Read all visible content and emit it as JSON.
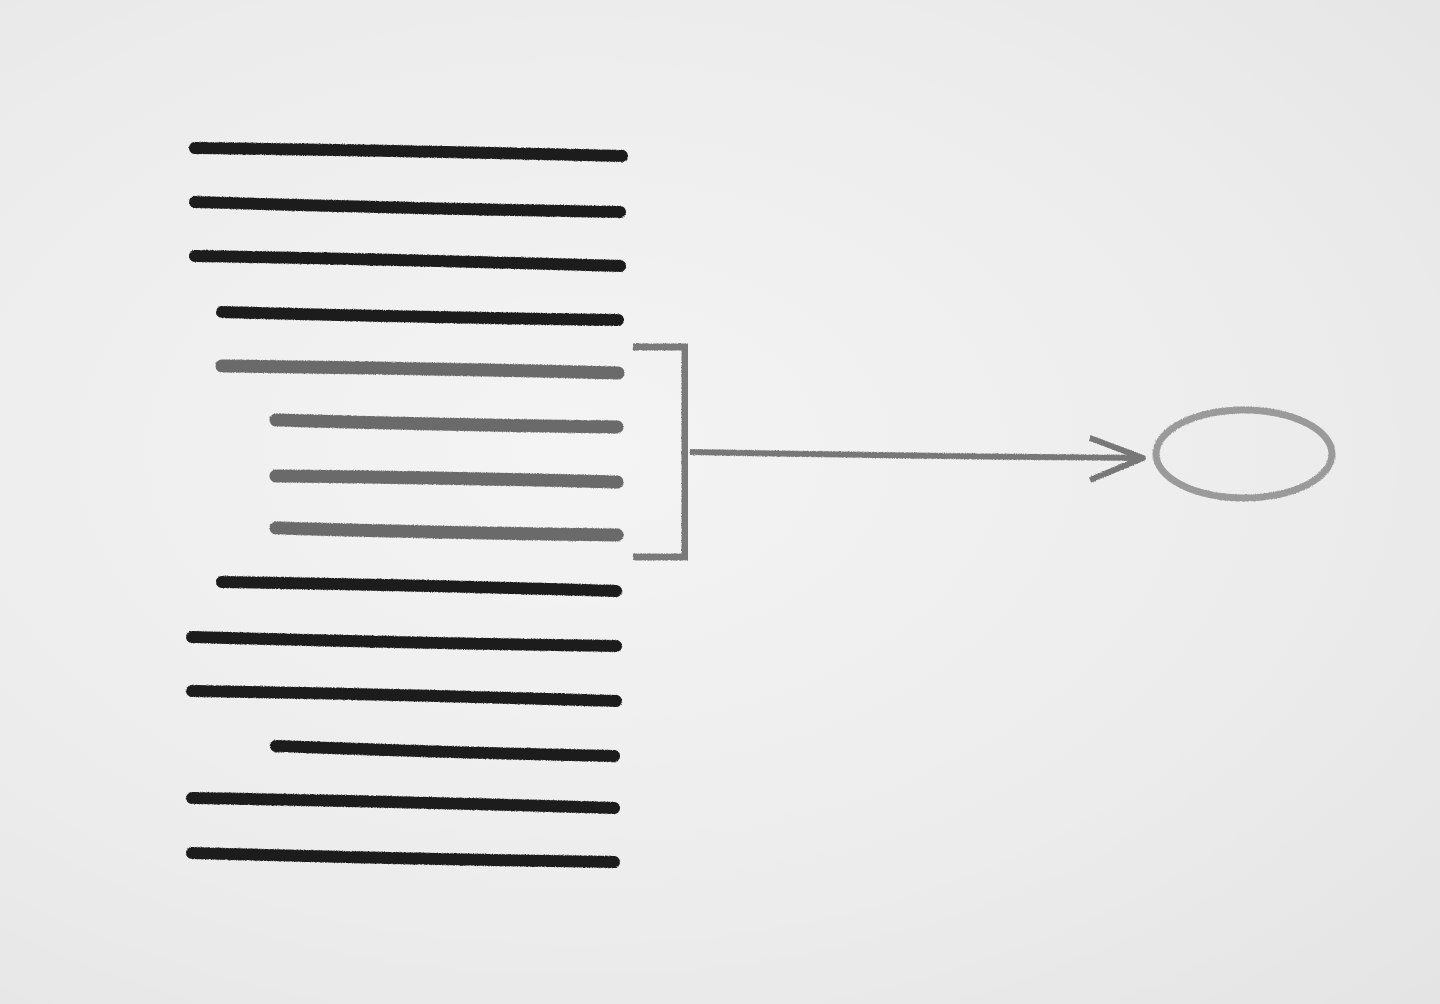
{
  "diagram": {
    "description_labels": [],
    "colors": {
      "background": "#ececec",
      "line_dark": "#1c1a1f",
      "line_highlight": "#6b6b6b",
      "bracket": "#7a7a7a",
      "arrow": "#777777",
      "node_outline": "#9a9a9a"
    },
    "line_count": 14,
    "highlighted_lines": [
      5,
      6,
      7,
      8
    ]
  }
}
